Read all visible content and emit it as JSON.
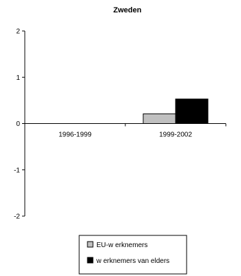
{
  "chart_data": {
    "type": "bar",
    "title": "Zweden",
    "categories": [
      "1996-1999",
      "1999-2002"
    ],
    "series": [
      {
        "name": "EU-w erknemers",
        "values": [
          0,
          0.21
        ],
        "color": "#c0c0c0"
      },
      {
        "name": "w erknemers van elders",
        "values": [
          0,
          0.53
        ],
        "color": "#000000"
      }
    ],
    "ylim": [
      -2,
      2
    ],
    "yticks": [
      2,
      1,
      0,
      -1,
      -2
    ],
    "grid": false,
    "legend_position": "bottom"
  }
}
